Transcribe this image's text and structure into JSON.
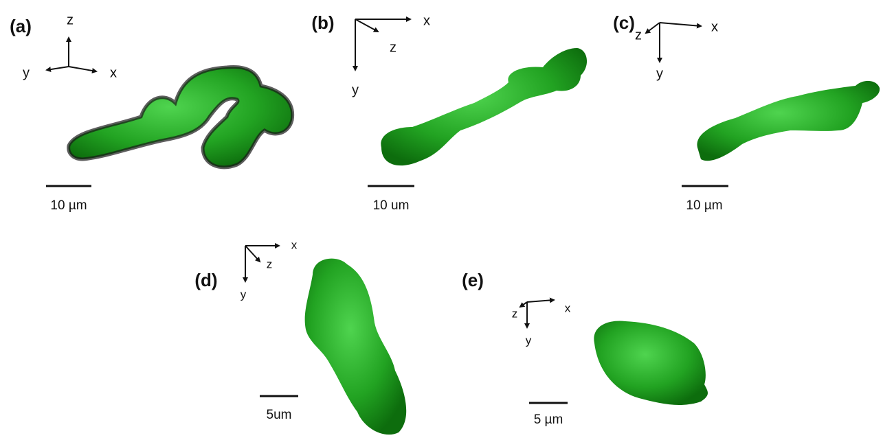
{
  "panels": [
    {
      "label": "(a)",
      "axes": {
        "x": "x",
        "y": "y",
        "z": "z"
      },
      "scale_bar": "10 µm"
    },
    {
      "label": "(b)",
      "axes": {
        "x": "x",
        "y": "y",
        "z": "z"
      },
      "scale_bar": "10 um"
    },
    {
      "label": "(c)",
      "axes": {
        "x": "x",
        "y": "y",
        "z": "z"
      },
      "scale_bar": "10 µm"
    },
    {
      "label": "(d)",
      "axes": {
        "x": "x",
        "y": "y",
        "z": "z"
      },
      "scale_bar": "5um"
    },
    {
      "label": "(e)",
      "axes": {
        "x": "x",
        "y": "y",
        "z": "z"
      },
      "scale_bar": "5 µm"
    }
  ]
}
